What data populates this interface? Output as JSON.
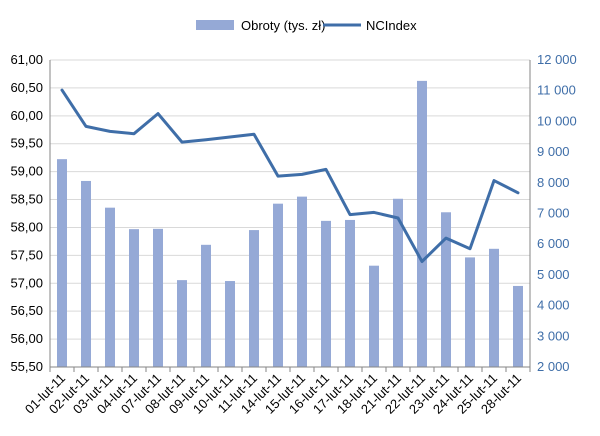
{
  "chart_data": {
    "type": "bar",
    "title": "",
    "xlabel": "",
    "ylabel": "",
    "legend_position": "top",
    "grid": "horizontal",
    "categories": [
      "01-lut-11",
      "02-lut-11",
      "03-lut-11",
      "04-lut-11",
      "07-lut-11",
      "08-lut-11",
      "09-lut-11",
      "10-lut-11",
      "11-lut-11",
      "14-lut-11",
      "15-lut-11",
      "16-lut-11",
      "17-lut-11",
      "18-lut-11",
      "21-lut-11",
      "22-lut-11",
      "23-lut-11",
      "24-lut-11",
      "25-lut-11",
      "28-lut-11"
    ],
    "series": [
      {
        "name": "Obroty (tys. zł)",
        "type": "bar",
        "axis": "right",
        "color": "#95a9d6",
        "values": [
          8770,
          8060,
          7190,
          6490,
          6500,
          4830,
          5980,
          4800,
          6460,
          7320,
          7550,
          6760,
          6790,
          5300,
          7480,
          11320,
          7040,
          5570,
          5850,
          4640
        ]
      },
      {
        "name": "NCIndex",
        "type": "line",
        "axis": "left",
        "color": "#3f6ea8",
        "values": [
          60.46,
          59.81,
          59.72,
          59.68,
          60.04,
          59.53,
          59.57,
          59.62,
          59.67,
          58.92,
          58.95,
          59.04,
          58.23,
          58.27,
          58.17,
          57.39,
          57.81,
          57.62,
          58.84,
          58.62
        ]
      }
    ],
    "y_left": {
      "min": 55.5,
      "max": 61.0,
      "ticks": [
        "55,50",
        "56,00",
        "56,50",
        "57,00",
        "57,50",
        "58,00",
        "58,50",
        "59,00",
        "59,50",
        "60,00",
        "60,50",
        "61,00"
      ]
    },
    "y_right": {
      "min": 2000,
      "max": 12000,
      "ticks": [
        "2 000",
        "3 000",
        "4 000",
        "5 000",
        "6 000",
        "7 000",
        "8 000",
        "9 000",
        "10 000",
        "11 000",
        "12 000"
      ],
      "color": "#3f6ea8"
    }
  }
}
